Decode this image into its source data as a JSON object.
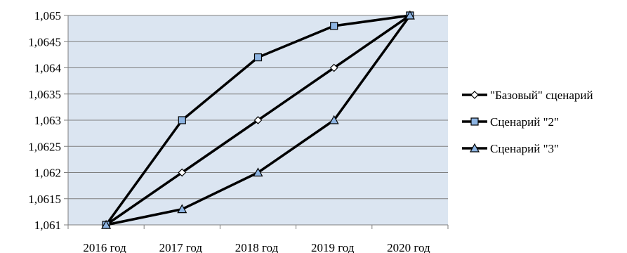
{
  "chart_data": {
    "type": "line",
    "categories": [
      "2016 год",
      "2017 год",
      "2018 год",
      "2019 год",
      "2020 год"
    ],
    "ylim": [
      1.061,
      1.065
    ],
    "yticks": [
      "1,061",
      "1,0615",
      "1,062",
      "1,0625",
      "1,063",
      "1,0635",
      "1,064",
      "1,0645",
      "1,065"
    ],
    "grid": true,
    "legend_position": "right",
    "plot_background": "#dbe5f1",
    "line_color": "#000000",
    "series": [
      {
        "name": "\"Базовый\" сценарий",
        "marker": "diamond",
        "marker_color": "#ffffff",
        "values": [
          1.061,
          1.062,
          1.063,
          1.064,
          1.065
        ]
      },
      {
        "name": "Сценарий \"2\"",
        "marker": "square",
        "marker_color": "#8db4e2",
        "values": [
          1.061,
          1.063,
          1.0642,
          1.0648,
          1.065
        ]
      },
      {
        "name": "Сценарий \"3\"",
        "marker": "triangle",
        "marker_color": "#8db4e2",
        "values": [
          1.061,
          1.0613,
          1.062,
          1.063,
          1.065
        ]
      }
    ]
  }
}
